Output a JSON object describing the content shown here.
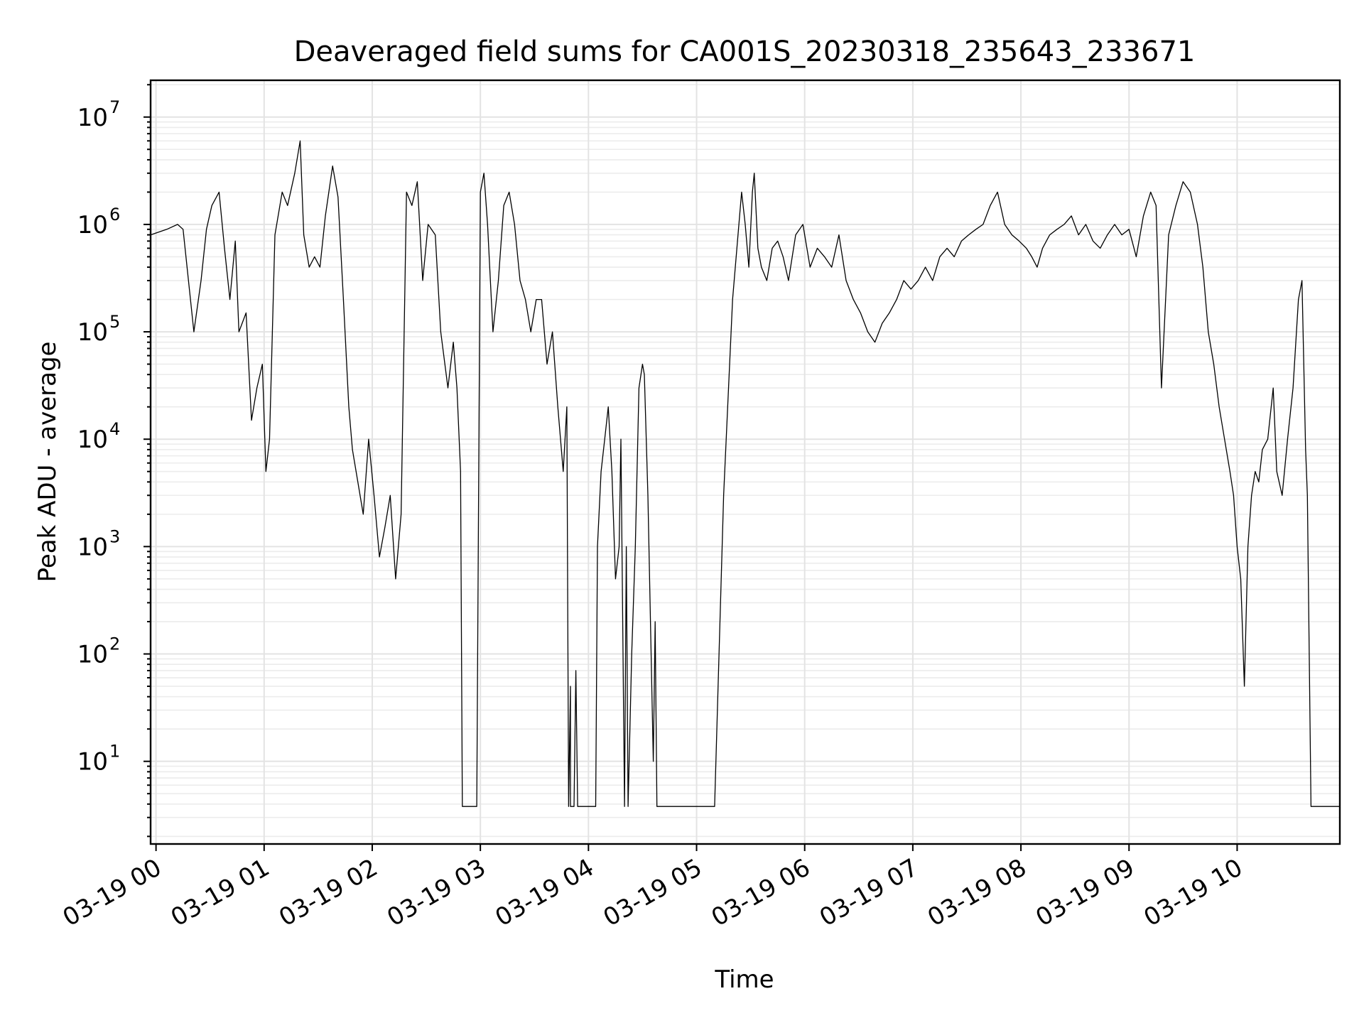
{
  "chart_data": {
    "type": "line",
    "title": "Deaveraged field sums for CA001S_20230318_235643_233671",
    "xlabel": "Time",
    "ylabel": "Peak ADU - average",
    "y_scale": "log",
    "ylim": [
      1.7,
      22000000
    ],
    "xlim": [
      "2023-03-18 23:57",
      "2023-03-19 10:57"
    ],
    "x_ticks": [
      "03-19 00",
      "03-19 01",
      "03-19 02",
      "03-19 03",
      "03-19 04",
      "03-19 05",
      "03-19 06",
      "03-19 07",
      "03-19 08",
      "03-19 09",
      "03-19 10"
    ],
    "y_ticks": [
      {
        "base": "10",
        "exp": "1",
        "value": 10
      },
      {
        "base": "10",
        "exp": "2",
        "value": 100
      },
      {
        "base": "10",
        "exp": "3",
        "value": 1000
      },
      {
        "base": "10",
        "exp": "4",
        "value": 10000
      },
      {
        "base": "10",
        "exp": "5",
        "value": 100000
      },
      {
        "base": "10",
        "exp": "6",
        "value": 1000000
      },
      {
        "base": "10",
        "exp": "7",
        "value": 10000000
      }
    ],
    "grid": true,
    "line_color": "#000000",
    "series": [
      {
        "x": [
          "2023-03-18 23:57",
          "2023-03-19 00:06",
          "2023-03-19 00:12",
          "2023-03-19 00:15",
          "2023-03-19 00:18",
          "2023-03-19 00:21",
          "2023-03-19 00:25",
          "2023-03-19 00:28",
          "2023-03-19 00:31",
          "2023-03-19 00:35",
          "2023-03-19 00:38",
          "2023-03-19 00:41",
          "2023-03-19 00:44",
          "2023-03-19 00:46",
          "2023-03-19 00:50",
          "2023-03-19 00:53",
          "2023-03-19 00:56",
          "2023-03-19 00:59",
          "2023-03-19 01:01",
          "2023-03-19 01:03",
          "2023-03-19 01:06",
          "2023-03-19 01:10",
          "2023-03-19 01:13",
          "2023-03-19 01:17",
          "2023-03-19 01:20",
          "2023-03-19 01:22",
          "2023-03-19 01:25",
          "2023-03-19 01:28",
          "2023-03-19 01:31",
          "2023-03-19 01:34",
          "2023-03-19 01:38",
          "2023-03-19 01:41",
          "2023-03-19 01:44",
          "2023-03-19 01:47",
          "2023-03-19 01:49",
          "2023-03-19 01:52",
          "2023-03-19 01:55",
          "2023-03-19 01:58",
          "2023-03-19 02:01",
          "2023-03-19 02:04",
          "2023-03-19 02:07",
          "2023-03-19 02:10",
          "2023-03-19 02:13",
          "2023-03-19 02:16",
          "2023-03-19 02:19",
          "2023-03-19 02:22",
          "2023-03-19 02:25",
          "2023-03-19 02:28",
          "2023-03-19 02:31",
          "2023-03-19 02:35",
          "2023-03-19 02:38",
          "2023-03-19 02:42",
          "2023-03-19 02:45",
          "2023-03-19 02:47",
          "2023-03-19 02:49",
          "2023-03-19 02:50",
          "2023-03-19 02:58",
          "2023-03-19 03:00",
          "2023-03-19 03:02",
          "2023-03-19 03:04",
          "2023-03-19 03:07",
          "2023-03-19 03:10",
          "2023-03-19 03:13",
          "2023-03-19 03:16",
          "2023-03-19 03:19",
          "2023-03-19 03:22",
          "2023-03-19 03:25",
          "2023-03-19 03:28",
          "2023-03-19 03:31",
          "2023-03-19 03:34",
          "2023-03-19 03:37",
          "2023-03-19 03:40",
          "2023-03-19 03:43",
          "2023-03-19 03:46",
          "2023-03-19 03:48",
          "2023-03-19 03:49",
          "2023-03-19 03:50",
          "2023-03-19 03:50",
          "2023-03-19 03:52",
          "2023-03-19 03:53",
          "2023-03-19 03:54",
          "2023-03-19 03:55",
          "2023-03-19 03:58",
          "2023-03-19 04:04",
          "2023-03-19 04:05",
          "2023-03-19 04:07",
          "2023-03-19 04:09",
          "2023-03-19 04:11",
          "2023-03-19 04:13",
          "2023-03-19 04:15",
          "2023-03-19 04:17",
          "2023-03-19 04:18",
          "2023-03-19 04:20",
          "2023-03-19 04:21",
          "2023-03-19 04:22",
          "2023-03-19 04:24",
          "2023-03-19 04:26",
          "2023-03-19 04:28",
          "2023-03-19 04:30",
          "2023-03-19 04:31",
          "2023-03-19 04:33",
          "2023-03-19 04:36",
          "2023-03-19 04:37",
          "2023-03-19 04:38",
          "2023-03-19 04:40",
          "2023-03-19 04:41",
          "2023-03-19 04:43",
          "2023-03-19 04:45",
          "2023-03-19 04:47",
          "2023-03-19 04:50",
          "2023-03-19 04:55",
          "2023-03-19 05:00",
          "2023-03-19 05:05",
          "2023-03-19 05:10",
          "2023-03-19 05:15",
          "2023-03-19 05:20",
          "2023-03-19 05:25",
          "2023-03-19 05:27",
          "2023-03-19 05:29",
          "2023-03-19 05:31",
          "2023-03-19 05:32",
          "2023-03-19 05:34",
          "2023-03-19 05:36",
          "2023-03-19 05:39",
          "2023-03-19 05:42",
          "2023-03-19 05:45",
          "2023-03-19 05:48",
          "2023-03-19 05:51",
          "2023-03-19 05:55",
          "2023-03-19 05:59",
          "2023-03-19 06:03",
          "2023-03-19 06:07",
          "2023-03-19 06:11",
          "2023-03-19 06:15",
          "2023-03-19 06:19",
          "2023-03-19 06:23",
          "2023-03-19 06:27",
          "2023-03-19 06:31",
          "2023-03-19 06:35",
          "2023-03-19 06:39",
          "2023-03-19 06:43",
          "2023-03-19 06:47",
          "2023-03-19 06:51",
          "2023-03-19 06:55",
          "2023-03-19 06:59",
          "2023-03-19 07:03",
          "2023-03-19 07:07",
          "2023-03-19 07:11",
          "2023-03-19 07:15",
          "2023-03-19 07:19",
          "2023-03-19 07:23",
          "2023-03-19 07:27",
          "2023-03-19 07:31",
          "2023-03-19 07:35",
          "2023-03-19 07:39",
          "2023-03-19 07:43",
          "2023-03-19 07:47",
          "2023-03-19 07:51",
          "2023-03-19 07:55",
          "2023-03-19 07:59",
          "2023-03-19 08:03",
          "2023-03-19 08:06",
          "2023-03-19 08:09",
          "2023-03-19 08:12",
          "2023-03-19 08:16",
          "2023-03-19 08:20",
          "2023-03-19 08:24",
          "2023-03-19 08:28",
          "2023-03-19 08:32",
          "2023-03-19 08:36",
          "2023-03-19 08:40",
          "2023-03-19 08:44",
          "2023-03-19 08:48",
          "2023-03-19 08:52",
          "2023-03-19 08:56",
          "2023-03-19 09:00",
          "2023-03-19 09:04",
          "2023-03-19 09:08",
          "2023-03-19 09:12",
          "2023-03-19 09:15",
          "2023-03-19 09:18",
          "2023-03-19 09:22",
          "2023-03-19 09:26",
          "2023-03-19 09:30",
          "2023-03-19 09:34",
          "2023-03-19 09:38",
          "2023-03-19 09:41",
          "2023-03-19 09:44",
          "2023-03-19 09:47",
          "2023-03-19 09:50",
          "2023-03-19 09:53",
          "2023-03-19 09:56",
          "2023-03-19 09:58",
          "2023-03-19 10:00",
          "2023-03-19 10:02",
          "2023-03-19 10:04",
          "2023-03-19 10:06",
          "2023-03-19 10:08",
          "2023-03-19 10:10",
          "2023-03-19 10:12",
          "2023-03-19 10:14",
          "2023-03-19 10:17",
          "2023-03-19 10:20",
          "2023-03-19 10:22",
          "2023-03-19 10:25",
          "2023-03-19 10:28",
          "2023-03-19 10:31",
          "2023-03-19 10:34",
          "2023-03-19 10:36",
          "2023-03-19 10:38",
          "2023-03-19 10:39",
          "2023-03-19 10:40",
          "2023-03-19 10:41",
          "2023-03-19 10:57"
        ],
        "values": [
          800000,
          900000,
          1000000,
          900000,
          300000,
          100000,
          300000,
          900000,
          1500000,
          2000000,
          600000,
          200000,
          700000,
          100000,
          150000,
          15000,
          30000,
          50000,
          5000,
          10000,
          800000,
          2000000,
          1500000,
          3000000,
          6000000,
          800000,
          400000,
          500000,
          400000,
          1200000,
          3500000,
          1800000,
          200000,
          20000,
          8000,
          4000,
          2000,
          10000,
          3000,
          800,
          1500,
          3000,
          500,
          2000,
          2000000,
          1500000,
          2500000,
          300000,
          1000000,
          800000,
          100000,
          30000,
          80000,
          30000,
          5000,
          3.8,
          3.8,
          2000000,
          3000000,
          1000000,
          100000,
          300000,
          1500000,
          2000000,
          1000000,
          300000,
          200000,
          100000,
          200000,
          200000,
          50000,
          100000,
          20000,
          5000,
          20000,
          3.8,
          50,
          3.8,
          3.8,
          70,
          3.8,
          3.8,
          3.8,
          3.8,
          1000,
          5000,
          10000,
          20000,
          5000,
          500,
          1000,
          10000,
          3.8,
          1000,
          3.8,
          100,
          1000,
          30000,
          50000,
          40000,
          3000,
          10,
          200,
          3.8,
          3.8,
          3.8,
          3.8,
          3.8,
          3.8,
          3.8,
          3.8,
          3.8,
          3.8,
          3.8,
          3000,
          200000,
          2000000,
          1000000,
          400000,
          2000000,
          3000000,
          600000,
          400000,
          300000,
          600000,
          700000,
          500000,
          300000,
          800000,
          1000000,
          400000,
          600000,
          500000,
          400000,
          800000,
          300000,
          200000,
          150000,
          100000,
          80000,
          120000,
          150000,
          200000,
          300000,
          250000,
          300000,
          400000,
          300000,
          500000,
          600000,
          500000,
          700000,
          800000,
          900000,
          1000000,
          1500000,
          2000000,
          1000000,
          800000,
          700000,
          600000,
          500000,
          400000,
          600000,
          800000,
          900000,
          1000000,
          1200000,
          800000,
          1000000,
          700000,
          600000,
          800000,
          1000000,
          800000,
          900000,
          500000,
          1200000,
          2000000,
          1500000,
          30000,
          800000,
          1500000,
          2500000,
          2000000,
          1000000,
          400000,
          100000,
          50000,
          20000,
          10000,
          5000,
          3000,
          1000,
          500,
          50,
          1000,
          3000,
          5000,
          4000,
          8000,
          10000,
          30000,
          5000,
          3000,
          10000,
          30000,
          200000,
          300000,
          8000,
          3000,
          100,
          3.8,
          3.8
        ]
      }
    ]
  }
}
